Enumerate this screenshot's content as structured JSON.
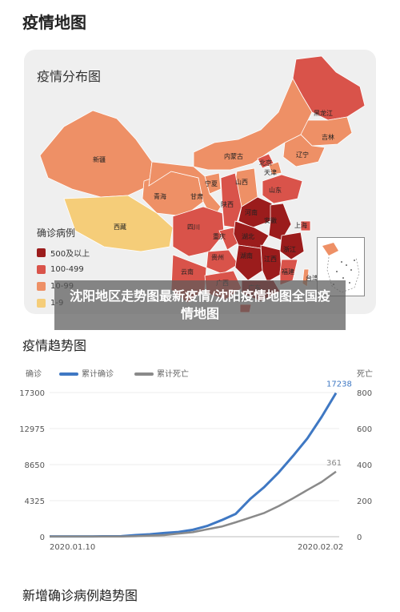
{
  "page": {
    "title": "疫情地图",
    "overlay_text": "沈阳地区走势图最新疫情/沈阳疫情地图全国疫情地图"
  },
  "map": {
    "title": "疫情分布图",
    "legend_title": "确诊病例",
    "legend": [
      {
        "label": "500及以上",
        "color": "#9b1c1c"
      },
      {
        "label": "100-499",
        "color": "#d9534a"
      },
      {
        "label": "10-99",
        "color": "#ee9066"
      },
      {
        "label": "1-9",
        "color": "#f5cd79"
      }
    ],
    "provinces": [
      {
        "name": "黑龙江",
        "color": "#d9534a"
      },
      {
        "name": "吉林",
        "color": "#ee9066"
      },
      {
        "name": "辽宁",
        "color": "#ee9066"
      },
      {
        "name": "内蒙古",
        "color": "#ee9066"
      },
      {
        "name": "北京",
        "color": "#d9534a"
      },
      {
        "name": "天津",
        "color": "#ee9066"
      },
      {
        "name": "新疆",
        "color": "#ee9066"
      },
      {
        "name": "宁夏",
        "color": "#ee9066"
      },
      {
        "name": "山西",
        "color": "#ee9066"
      },
      {
        "name": "山东",
        "color": "#d9534a"
      },
      {
        "name": "青海",
        "color": "#ee9066"
      },
      {
        "name": "甘肃",
        "color": "#ee9066"
      },
      {
        "name": "陕西",
        "color": "#d9534a"
      },
      {
        "name": "河南",
        "color": "#9b1c1c"
      },
      {
        "name": "安徽",
        "color": "#9b1c1c"
      },
      {
        "name": "上海",
        "color": "#d9534a"
      },
      {
        "name": "西藏",
        "color": "#f5cd79"
      },
      {
        "name": "四川",
        "color": "#d9534a"
      },
      {
        "name": "重庆",
        "color": "#d9534a"
      },
      {
        "name": "湖北",
        "color": "#9b1c1c"
      },
      {
        "name": "浙江",
        "color": "#9b1c1c"
      },
      {
        "name": "贵州",
        "color": "#d9534a"
      },
      {
        "name": "湖南",
        "color": "#9b1c1c"
      },
      {
        "name": "江西",
        "color": "#9b1c1c"
      },
      {
        "name": "福建",
        "color": "#d9534a"
      },
      {
        "name": "云南",
        "color": "#d9534a"
      },
      {
        "name": "广西",
        "color": "#d9534a"
      },
      {
        "name": "广东",
        "color": "#9b1c1c"
      },
      {
        "name": "台湾",
        "color": "#ee9066"
      },
      {
        "name": "海南",
        "color": "#d9534a"
      }
    ]
  },
  "trend": {
    "section_title": "疫情趋势图",
    "left_axis_title": "确诊",
    "right_axis_title": "死亡",
    "next_section_title": "新增确诊病例趋势图"
  },
  "chart_data": {
    "type": "line",
    "legend_placement": "top",
    "x_labels": [
      "2020.01.10",
      "2020.02.02"
    ],
    "y_left_ticks": [
      "0",
      "4325",
      "8650",
      "12975",
      "17300"
    ],
    "y_right_ticks": [
      "0",
      "200",
      "400",
      "600",
      "800"
    ],
    "ylim_left": [
      0,
      17300
    ],
    "ylim_right": [
      0,
      800
    ],
    "series": [
      {
        "name": "累计确诊",
        "axis": "left",
        "color": "#3f78c3",
        "end_label": "17238",
        "values": [
          41,
          41,
          41,
          41,
          45,
          62,
          198,
          291,
          440,
          571,
          830,
          1287,
          1975,
          2744,
          4515,
          5974,
          7711,
          9692,
          11791,
          14380,
          17238
        ]
      },
      {
        "name": "累计死亡",
        "axis": "left_scaled_right",
        "color": "#8a8a8a",
        "end_label": "361",
        "values": [
          1,
          1,
          1,
          1,
          1,
          1,
          3,
          6,
          9,
          17,
          25,
          41,
          56,
          80,
          106,
          132,
          170,
          213,
          259,
          304,
          361
        ]
      }
    ]
  }
}
